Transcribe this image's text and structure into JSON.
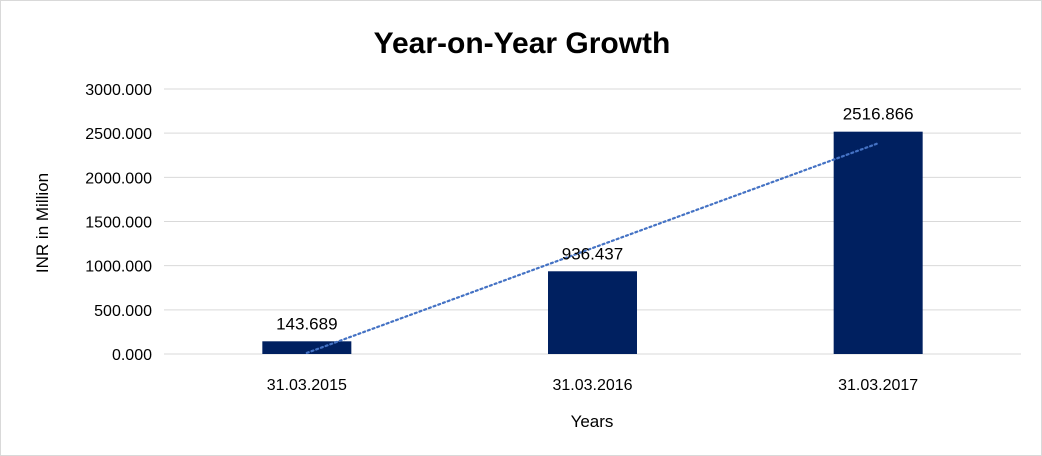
{
  "chart_data": {
    "type": "bar",
    "title": "Year-on-Year Growth",
    "xlabel": "Years",
    "ylabel": "INR in Million",
    "categories": [
      "31.03.2015",
      "31.03.2016",
      "31.03.2017"
    ],
    "values": [
      143.689,
      936.437,
      2516.866
    ],
    "data_labels": [
      "143.689",
      "936.437",
      "2516.866"
    ],
    "ylim": [
      0,
      3000
    ],
    "yticks": [
      0,
      500,
      1000,
      1500,
      2000,
      2500,
      3000
    ],
    "ytick_labels": [
      "0.000",
      "500.000",
      "1000.000",
      "1500.000",
      "2000.000",
      "2500.000",
      "3000.000"
    ],
    "grid": true,
    "bar_color": "#002060",
    "trendline": {
      "type": "linear",
      "style": "dotted",
      "color": "#4472c4"
    }
  }
}
